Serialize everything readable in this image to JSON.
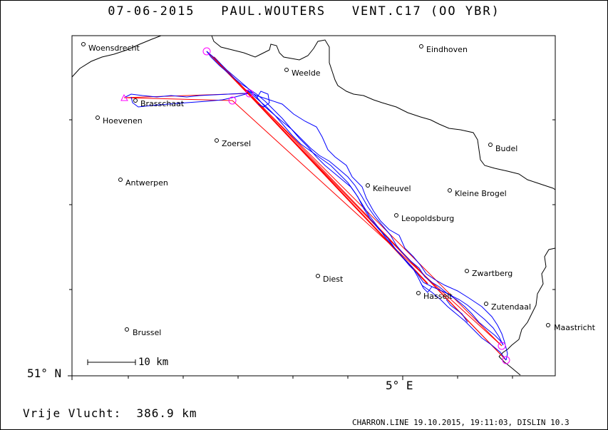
{
  "header": {
    "date": "07-06-2015",
    "pilot": "PAUL.WOUTERS",
    "glider": "VENT.C17 (OO YBR)"
  },
  "map": {
    "lat_label": "51° N",
    "lon_label": "5° E",
    "scale_label": "10 km",
    "cities": [
      {
        "name": "Woensdrecht"
      },
      {
        "name": "Eindhoven"
      },
      {
        "name": "Weelde"
      },
      {
        "name": "Brasschaat"
      },
      {
        "name": "Hoevenen"
      },
      {
        "name": "Budel"
      },
      {
        "name": "Zoersel"
      },
      {
        "name": "Antwerpen"
      },
      {
        "name": "Keiheuvel"
      },
      {
        "name": "Kleine Brogel"
      },
      {
        "name": "Leopoldsburg"
      },
      {
        "name": "Zwartberg"
      },
      {
        "name": "Diest"
      },
      {
        "name": "Hasselt"
      },
      {
        "name": "Zutendaal"
      },
      {
        "name": "Maastricht"
      },
      {
        "name": "Brussel"
      }
    ],
    "colors": {
      "border": "#000000",
      "task": "#ff0000",
      "track": "#0000ff",
      "turnpoint": "#ff00ff"
    }
  },
  "footer": {
    "distance_label": "Vrije Vlucht:",
    "distance_value": "386.9 km",
    "software": "CHARRON.LINE 19.10.2015, 19:11:03, DISLIN 10.3"
  }
}
